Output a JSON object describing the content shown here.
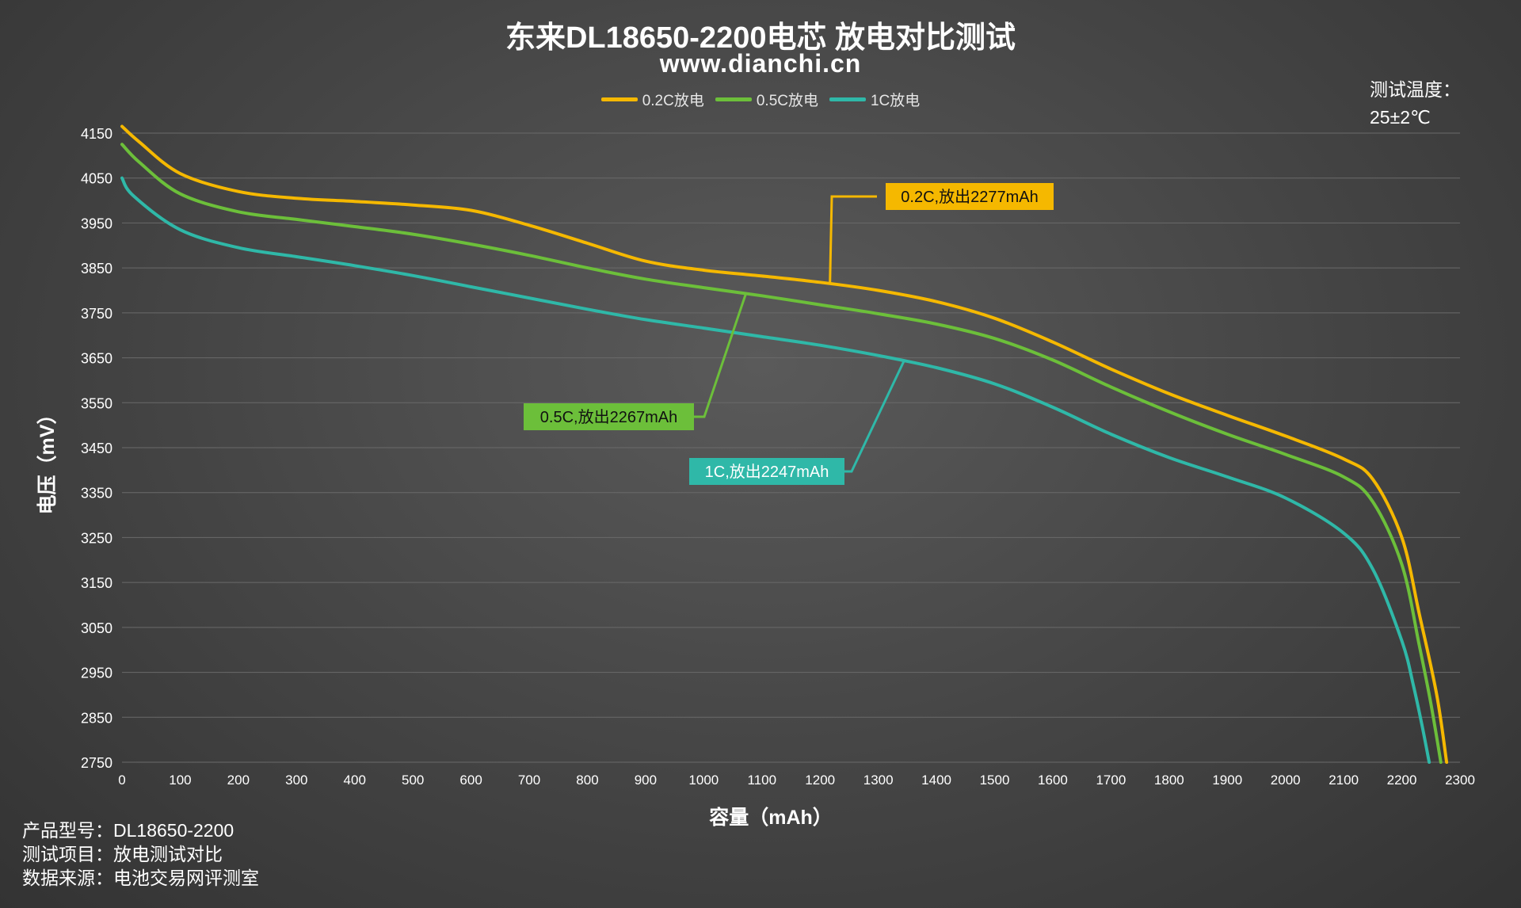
{
  "title": "东来DL18650-2200电芯 放电对比测试",
  "subtitle": "www.dianchi.cn",
  "temperature": {
    "label": "测试温度：",
    "value": "25±2℃"
  },
  "info": [
    {
      "key": "产品型号：",
      "value": "DL18650-2200"
    },
    {
      "key": "测试项目：",
      "value": "放电测试对比"
    },
    {
      "key": "数据来源：",
      "value": "电池交易网评测室"
    }
  ],
  "colors": {
    "0.2C": "#f5b800",
    "0.5C": "#6cbf3a",
    "1C": "#2fb8a8",
    "grid": "#6a6a6a",
    "axis_text": "#ffffff"
  },
  "chart_data": {
    "type": "line",
    "xlabel": "容量（mAh）",
    "ylabel": "电压（mV）",
    "xlim": [
      0,
      2300
    ],
    "ylim": [
      2750,
      4150
    ],
    "xticks": [
      0,
      100,
      200,
      300,
      400,
      500,
      600,
      700,
      800,
      900,
      1000,
      1100,
      1200,
      1300,
      1400,
      1500,
      1600,
      1700,
      1800,
      1900,
      2000,
      2100,
      2200,
      2300
    ],
    "yticks": [
      2750,
      2850,
      2950,
      3050,
      3150,
      3250,
      3350,
      3450,
      3550,
      3650,
      3750,
      3850,
      3950,
      4050,
      4150
    ],
    "grid": "horizontal",
    "legend_position": "top-center",
    "series": [
      {
        "name": "0.2C放电",
        "color": "#f5b800",
        "annotation": "0.2C,放出2277mAh",
        "x": [
          0,
          30,
          100,
          200,
          300,
          400,
          500,
          600,
          700,
          800,
          900,
          1000,
          1100,
          1200,
          1300,
          1400,
          1500,
          1600,
          1700,
          1800,
          1900,
          2000,
          2100,
          2150,
          2200,
          2230,
          2260,
          2277
        ],
        "y": [
          4165,
          4130,
          4060,
          4020,
          4005,
          3998,
          3990,
          3978,
          3945,
          3905,
          3865,
          3845,
          3832,
          3818,
          3800,
          3775,
          3738,
          3685,
          3625,
          3570,
          3522,
          3476,
          3425,
          3380,
          3250,
          3080,
          2900,
          2750
        ]
      },
      {
        "name": "0.5C放电",
        "color": "#6cbf3a",
        "annotation": "0.5C,放出2267mAh",
        "x": [
          0,
          30,
          100,
          200,
          300,
          400,
          500,
          600,
          700,
          800,
          900,
          1000,
          1100,
          1200,
          1300,
          1400,
          1500,
          1600,
          1700,
          1800,
          1900,
          2000,
          2100,
          2150,
          2200,
          2230,
          2250,
          2267
        ],
        "y": [
          4125,
          4085,
          4015,
          3975,
          3958,
          3942,
          3925,
          3903,
          3878,
          3850,
          3825,
          3806,
          3788,
          3768,
          3748,
          3725,
          3693,
          3645,
          3585,
          3530,
          3480,
          3435,
          3385,
          3330,
          3190,
          3010,
          2880,
          2750
        ]
      },
      {
        "name": "1C放电",
        "color": "#2fb8a8",
        "annotation": "1C,放出2247mAh",
        "x": [
          0,
          20,
          100,
          200,
          300,
          400,
          500,
          600,
          700,
          800,
          900,
          1000,
          1100,
          1200,
          1300,
          1400,
          1500,
          1600,
          1700,
          1800,
          1900,
          2000,
          2100,
          2150,
          2200,
          2220,
          2235,
          2247
        ],
        "y": [
          4050,
          4010,
          3935,
          3895,
          3875,
          3855,
          3833,
          3808,
          3783,
          3758,
          3735,
          3716,
          3697,
          3678,
          3655,
          3628,
          3592,
          3540,
          3480,
          3428,
          3385,
          3338,
          3260,
          3180,
          3020,
          2920,
          2830,
          2750
        ]
      }
    ]
  }
}
